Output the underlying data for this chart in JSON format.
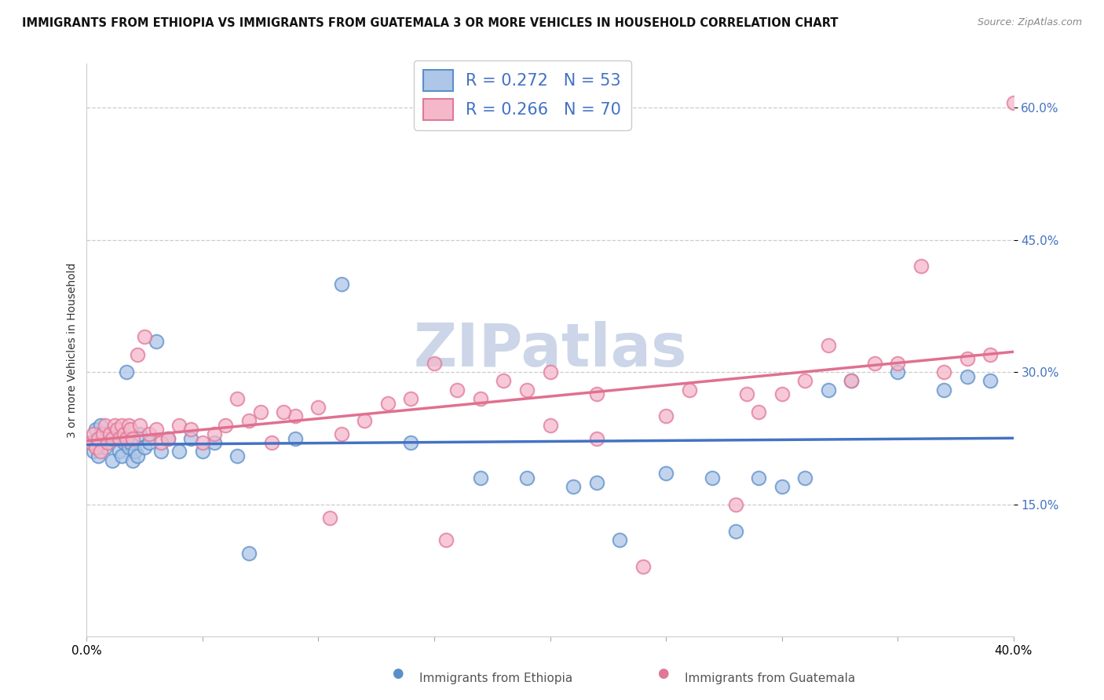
{
  "title": "IMMIGRANTS FROM ETHIOPIA VS IMMIGRANTS FROM GUATEMALA 3 OR MORE VEHICLES IN HOUSEHOLD CORRELATION CHART",
  "source": "Source: ZipAtlas.com",
  "ylabel": "3 or more Vehicles in Household",
  "xmin": 0.0,
  "xmax": 40.0,
  "ymin": 0.0,
  "ymax": 65.0,
  "yticks": [
    15.0,
    30.0,
    45.0,
    60.0
  ],
  "xticks": [
    0.0,
    5.0,
    10.0,
    15.0,
    20.0,
    25.0,
    30.0,
    35.0,
    40.0
  ],
  "watermark": "ZIPatlas",
  "eth_R": 0.272,
  "eth_N": 53,
  "gua_R": 0.266,
  "gua_N": 70,
  "eth_face": "#aec6e8",
  "eth_edge": "#5b8fc9",
  "eth_line": "#4472c4",
  "gua_face": "#f5b8cb",
  "gua_edge": "#e07898",
  "gua_line": "#e07090",
  "bg": "#ffffff",
  "grid_color": "#cccccc",
  "ytick_color": "#4472c4",
  "title_color": "#111111",
  "source_color": "#888888",
  "watermark_color": "#ccd6e8",
  "ethiopia_x": [
    0.2,
    0.3,
    0.4,
    0.5,
    0.6,
    0.7,
    0.8,
    0.9,
    1.0,
    1.1,
    1.2,
    1.3,
    1.4,
    1.5,
    1.6,
    1.7,
    1.8,
    1.9,
    2.0,
    2.1,
    2.2,
    2.3,
    2.5,
    2.7,
    3.0,
    3.2,
    3.5,
    4.0,
    4.5,
    5.0,
    5.5,
    6.5,
    7.0,
    9.0,
    11.0,
    14.0,
    17.0,
    19.0,
    21.0,
    22.0,
    23.0,
    25.0,
    27.0,
    28.0,
    29.0,
    30.0,
    31.0,
    32.0,
    33.0,
    35.0,
    37.0,
    38.0,
    39.0
  ],
  "ethiopia_y": [
    22.0,
    21.0,
    23.5,
    20.5,
    24.0,
    22.0,
    21.5,
    23.0,
    22.5,
    20.0,
    23.0,
    22.5,
    21.0,
    20.5,
    22.0,
    30.0,
    21.5,
    22.0,
    20.0,
    21.0,
    20.5,
    23.0,
    21.5,
    22.0,
    33.5,
    21.0,
    22.5,
    21.0,
    22.5,
    21.0,
    22.0,
    20.5,
    9.5,
    22.5,
    40.0,
    22.0,
    18.0,
    18.0,
    17.0,
    17.5,
    11.0,
    18.5,
    18.0,
    12.0,
    18.0,
    17.0,
    18.0,
    28.0,
    29.0,
    30.0,
    28.0,
    29.5,
    29.0
  ],
  "guatemala_x": [
    0.2,
    0.3,
    0.4,
    0.5,
    0.6,
    0.7,
    0.8,
    0.9,
    1.0,
    1.1,
    1.2,
    1.3,
    1.4,
    1.5,
    1.6,
    1.7,
    1.8,
    1.9,
    2.0,
    2.2,
    2.3,
    2.5,
    2.7,
    3.0,
    3.2,
    3.5,
    4.0,
    4.5,
    5.0,
    5.5,
    6.0,
    7.0,
    7.5,
    8.0,
    9.0,
    10.0,
    11.0,
    12.0,
    13.0,
    14.0,
    15.0,
    16.0,
    17.0,
    18.0,
    20.0,
    22.0,
    24.0,
    26.0,
    28.0,
    29.0,
    30.0,
    31.0,
    32.0,
    33.0,
    34.0,
    35.0,
    36.0,
    37.0,
    38.0,
    39.0,
    40.0,
    20.0,
    25.0,
    8.5,
    19.0,
    28.5,
    10.5,
    22.0,
    15.5,
    6.5
  ],
  "guatemala_y": [
    22.0,
    23.0,
    21.5,
    22.5,
    21.0,
    23.0,
    24.0,
    22.0,
    23.0,
    22.5,
    24.0,
    23.5,
    22.5,
    24.0,
    23.0,
    22.5,
    24.0,
    23.5,
    22.5,
    32.0,
    24.0,
    34.0,
    23.0,
    23.5,
    22.0,
    22.5,
    24.0,
    23.5,
    22.0,
    23.0,
    24.0,
    24.5,
    25.5,
    22.0,
    25.0,
    26.0,
    23.0,
    24.5,
    26.5,
    27.0,
    31.0,
    28.0,
    27.0,
    29.0,
    30.0,
    27.5,
    8.0,
    28.0,
    15.0,
    25.5,
    27.5,
    29.0,
    33.0,
    29.0,
    31.0,
    31.0,
    42.0,
    30.0,
    31.5,
    32.0,
    60.5,
    24.0,
    25.0,
    25.5,
    28.0,
    27.5,
    13.5,
    22.5,
    11.0,
    27.0
  ]
}
